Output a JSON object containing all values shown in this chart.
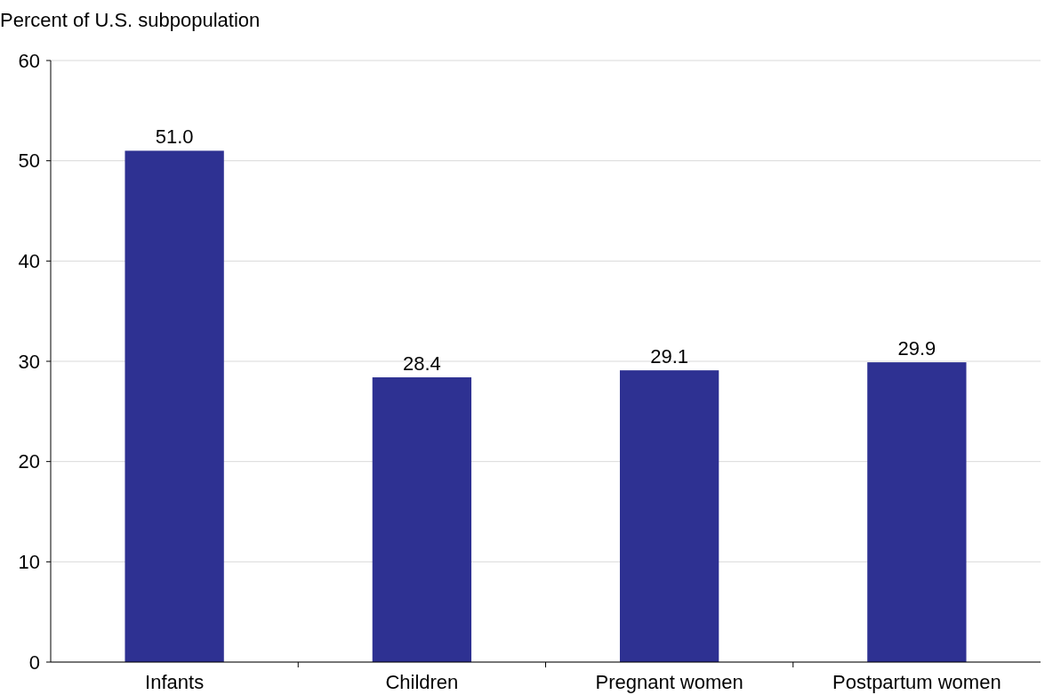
{
  "chart_data": {
    "type": "bar",
    "ylabel": "Percent of U.S. subpopulation",
    "categories": [
      "Infants",
      "Children",
      "Pregnant women",
      "Postpartum women"
    ],
    "values": [
      51.0,
      28.4,
      29.1,
      29.9
    ],
    "color": "#2e3192",
    "ylim": [
      0,
      60
    ],
    "yticks": [
      0,
      10,
      20,
      30,
      40,
      50,
      60
    ],
    "grid": "y",
    "value_labels": [
      "51.0",
      "28.4",
      "29.1",
      "29.9"
    ]
  }
}
